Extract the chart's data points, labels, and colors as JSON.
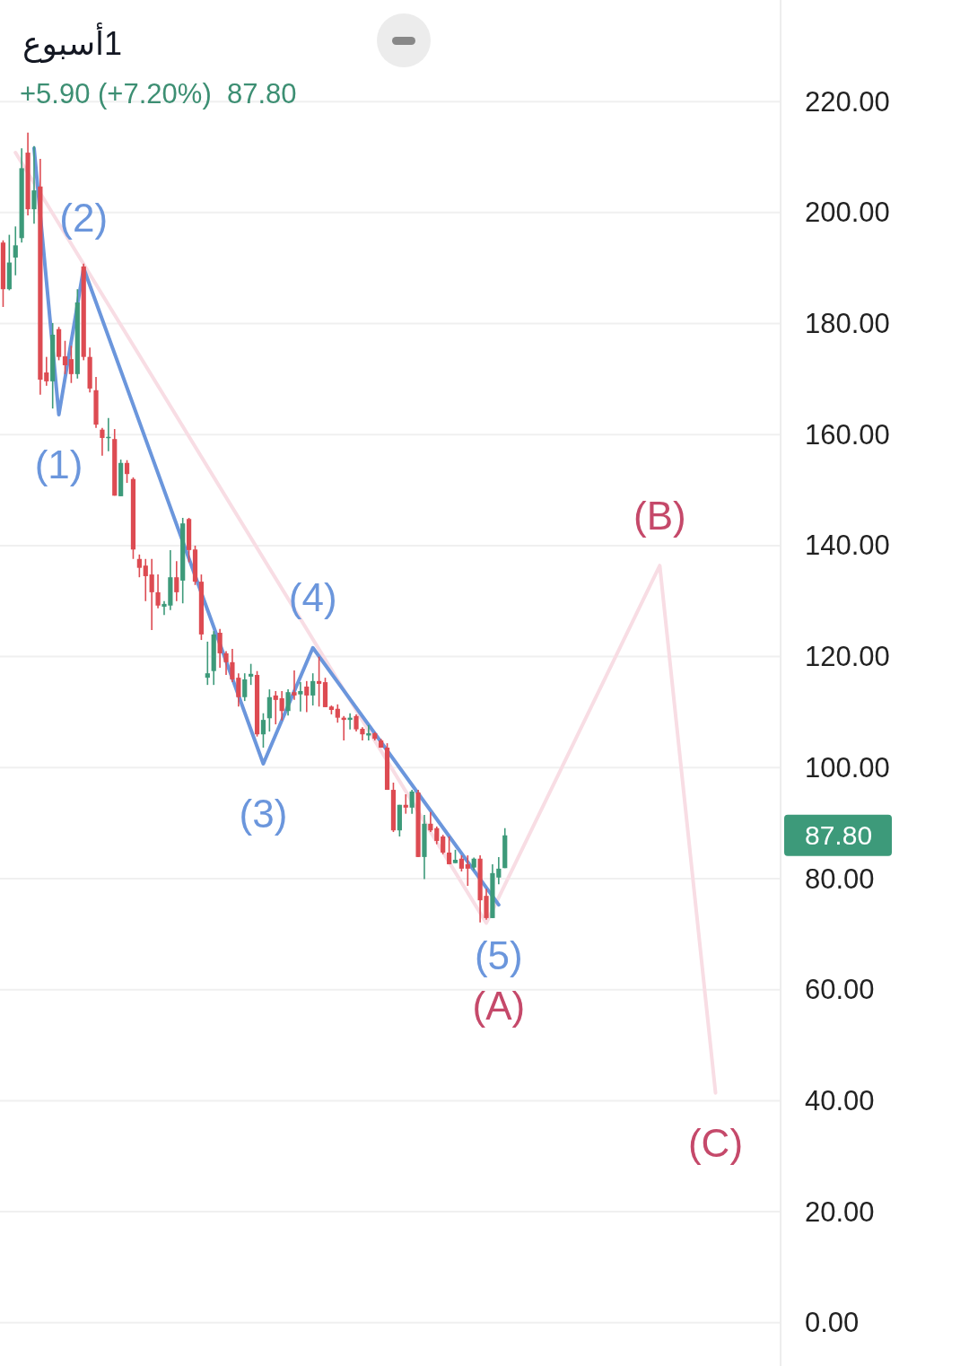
{
  "chart_data": {
    "type": "candlestick",
    "title": "1أسبوع",
    "subtitle": "+5.90 (+7.20%)  87.80",
    "categories": [
      null,
      null,
      null,
      null,
      null,
      null,
      null,
      null,
      null,
      null,
      null,
      null,
      null,
      null,
      null,
      null,
      null,
      null,
      null,
      null,
      null,
      null,
      null,
      null,
      null,
      null,
      null,
      null,
      null,
      null,
      null,
      null,
      null,
      null,
      null,
      null,
      null,
      null,
      null,
      null,
      null,
      null,
      null,
      null,
      null,
      null,
      null,
      null,
      null,
      null,
      null,
      null,
      null,
      null,
      null,
      null,
      null,
      null,
      null,
      null,
      null,
      null,
      null,
      null,
      null,
      null,
      null,
      null,
      null,
      null,
      null,
      null,
      null,
      null,
      null,
      null,
      null,
      null,
      null,
      null,
      null,
      null,
      null,
      null,
      null,
      null,
      null,
      null,
      null,
      null,
      null,
      null,
      null,
      null,
      null,
      null,
      null,
      null,
      null,
      null,
      null,
      null,
      null,
      null,
      null,
      null,
      null,
      null,
      null,
      null,
      null,
      null,
      null,
      null,
      null,
      null,
      null,
      null,
      null,
      null,
      null,
      null,
      null,
      null,
      null,
      null
    ],
    "ohlc": [
      [
        194.6,
        195,
        183,
        186.2
      ],
      [
        186.2,
        196,
        186,
        191
      ],
      [
        191.9,
        197.5,
        188.7,
        194.1
      ],
      [
        195.4,
        211.6,
        194.6,
        208
      ],
      [
        210.8,
        214.4,
        199.5,
        200.6
      ],
      [
        200.6,
        212,
        198,
        204
      ],
      [
        204.7,
        209.7,
        167.2,
        169.9
      ],
      [
        171.2,
        174,
        168.8,
        169.6
      ],
      [
        169.6,
        180.1,
        164.7,
        178
      ],
      [
        179,
        179.4,
        173.4,
        174
      ],
      [
        174.1,
        176.9,
        170.9,
        172.5
      ],
      [
        173.6,
        176,
        169.3,
        170.9
      ],
      [
        170.9,
        186.2,
        170.1,
        183.8
      ],
      [
        190.3,
        190.8,
        173.4,
        174
      ],
      [
        174,
        175.7,
        167.6,
        168.3
      ],
      [
        168,
        170.4,
        161.2,
        161.8
      ],
      [
        160.9,
        161.2,
        156.2,
        159.4
      ],
      [
        159.4,
        163,
        157,
        159.6
      ],
      [
        159.2,
        161,
        149,
        149
      ],
      [
        148.9,
        155.5,
        148.9,
        154.9
      ],
      [
        154.9,
        155.4,
        151.3,
        152.9
      ],
      [
        152,
        152.3,
        137.6,
        139.3
      ],
      [
        137.6,
        138.4,
        134.3,
        136
      ],
      [
        136.4,
        137.6,
        130,
        134.5
      ],
      [
        134.8,
        137.6,
        124.8,
        131.6
      ],
      [
        131.6,
        134.8,
        128.7,
        129.2
      ],
      [
        129,
        130,
        127.5,
        129.5
      ],
      [
        129.2,
        139.2,
        128.4,
        134.3
      ],
      [
        134.3,
        137.2,
        130,
        131.6
      ],
      [
        133.7,
        145,
        129.6,
        144
      ],
      [
        144.8,
        145,
        137,
        139.2
      ],
      [
        139.3,
        140,
        132.9,
        133.5
      ],
      [
        133.5,
        134.8,
        123,
        124
      ],
      [
        116.2,
        122.7,
        114.9,
        117
      ],
      [
        117.4,
        124.6,
        114.9,
        124
      ],
      [
        124.3,
        125,
        118,
        120.6
      ],
      [
        120.6,
        121,
        116.7,
        119
      ],
      [
        119,
        121.4,
        115.4,
        115.9
      ],
      [
        116.2,
        117,
        111,
        112.7
      ],
      [
        112.7,
        117,
        112,
        115.9
      ],
      [
        116.4,
        118.7,
        114.9,
        116.9
      ],
      [
        116.7,
        117.4,
        105.6,
        106
      ],
      [
        106,
        109.8,
        103.6,
        108.6
      ],
      [
        108.9,
        114.1,
        106.5,
        112.7
      ],
      [
        113,
        113.8,
        107.8,
        112.2
      ],
      [
        112.5,
        113.8,
        108.5,
        110.2
      ],
      [
        110.2,
        114.1,
        109.4,
        113.6
      ],
      [
        113.6,
        117.5,
        112.2,
        113
      ],
      [
        113.2,
        115.4,
        110.1,
        113.8
      ],
      [
        114.6,
        115.6,
        110,
        113
      ],
      [
        113,
        117,
        111.2,
        115.6
      ],
      [
        115.6,
        120,
        111,
        115.1
      ],
      [
        115.4,
        116.2,
        110.9,
        110.9
      ],
      [
        111,
        111.2,
        109.6,
        110.4
      ],
      [
        110.6,
        111.4,
        108.1,
        109
      ],
      [
        109,
        109.3,
        104.9,
        108.6
      ],
      [
        108.6,
        109.8,
        106.9,
        109
      ],
      [
        109.3,
        109.6,
        106.5,
        106.9
      ],
      [
        107,
        107.3,
        104.9,
        106
      ],
      [
        105.8,
        107.7,
        104.9,
        106.2
      ],
      [
        106.2,
        106.4,
        104.9,
        105.2
      ],
      [
        104.9,
        105.2,
        103.6,
        103.6
      ],
      [
        103.6,
        104.4,
        96,
        96
      ],
      [
        96,
        97.3,
        88.4,
        88.7
      ],
      [
        88.7,
        93.3,
        87.6,
        93.3
      ],
      [
        93.3,
        95.2,
        91.7,
        92.8
      ],
      [
        92.8,
        96,
        91.7,
        95.7
      ],
      [
        95.5,
        96,
        83.9,
        83.9
      ],
      [
        83.9,
        91.5,
        79.9,
        89.9
      ],
      [
        89.9,
        92,
        88.4,
        88.7
      ],
      [
        89.1,
        89.4,
        86.2,
        86.8
      ],
      [
        87.6,
        87.9,
        84.4,
        84.7
      ],
      [
        84.7,
        87.6,
        82.6,
        82.6
      ],
      [
        82.8,
        85.2,
        82.8,
        83.4
      ],
      [
        83.6,
        84.2,
        81.3,
        81.8
      ],
      [
        82.6,
        84.2,
        78.7,
        81.8
      ],
      [
        82,
        83.8,
        81.5,
        83.6
      ],
      [
        83.6,
        84.2,
        72.1,
        76.1
      ],
      [
        76.9,
        78.2,
        72.6,
        72.9
      ],
      [
        72.9,
        82.6,
        72.9,
        81
      ],
      [
        80.2,
        83.9,
        79,
        81.8
      ],
      [
        81.9,
        89.1,
        81.9,
        87.8
      ],
      null,
      null,
      null,
      null,
      null,
      null,
      null,
      null,
      null,
      null,
      null,
      null,
      null,
      null,
      null,
      null,
      null,
      null,
      null,
      null,
      null,
      null,
      null,
      null,
      null,
      null,
      null,
      null,
      null,
      null,
      null,
      null,
      null,
      null,
      null,
      null,
      null,
      null,
      null,
      null,
      null,
      null,
      null,
      null
    ],
    "colors": [
      "#dd4b52",
      "#3d9a7a",
      "#3d9a7a",
      "#3d9a7a",
      "#dd4b52",
      "#3d9a7a",
      "#dd4b52",
      "#dd4b52",
      "#3d9a7a",
      "#dd4b52",
      "#dd4b52",
      "#dd4b52",
      "#3d9a7a",
      "#dd4b52",
      "#dd4b52",
      "#dd4b52",
      "#dd4b52",
      "#3d9a7a",
      "#dd4b52",
      "#3d9a7a",
      "#dd4b52",
      "#dd4b52",
      "#dd4b52",
      "#dd4b52",
      "#dd4b52",
      "#dd4b52",
      "#3d9a7a",
      "#3d9a7a",
      "#dd4b52",
      "#3d9a7a",
      "#dd4b52",
      "#dd4b52",
      "#dd4b52",
      "#3d9a7a",
      "#3d9a7a",
      "#dd4b52",
      "#dd4b52",
      "#dd4b52",
      "#dd4b52",
      "#3d9a7a",
      "#3d9a7a",
      "#dd4b52",
      "#3d9a7a",
      "#3d9a7a",
      "#dd4b52",
      "#dd4b52",
      "#3d9a7a",
      "#dd4b52",
      "#3d9a7a",
      "#dd4b52",
      "#3d9a7a",
      "#dd4b52",
      "#dd4b52",
      "#dd4b52",
      "#dd4b52",
      "#dd4b52",
      "#3d9a7a",
      "#dd4b52",
      "#dd4b52",
      "#3d9a7a",
      "#dd4b52",
      "#dd4b52",
      "#dd4b52",
      "#dd4b52",
      "#3d9a7a",
      "#dd4b52",
      "#3d9a7a",
      "#dd4b52",
      "#3d9a7a",
      "#dd4b52",
      "#dd4b52",
      "#dd4b52",
      "#dd4b52",
      "#3d9a7a",
      "#dd4b52",
      "#dd4b52",
      "#3d9a7a",
      "#dd4b52",
      "#dd4b52",
      "#3d9a7a",
      "#3d9a7a",
      "#3d9a7a",
      null,
      null,
      null,
      null,
      null,
      null,
      null,
      null,
      null,
      null,
      null,
      null,
      null,
      null,
      null,
      null,
      null,
      null,
      null,
      null,
      null,
      null,
      null,
      null,
      null,
      null,
      null,
      null,
      null,
      null,
      null,
      null,
      null,
      null,
      null,
      null,
      null,
      null,
      null,
      null,
      null,
      null,
      null,
      null
    ],
    "series": [
      {
        "type": "line",
        "color": "#f8dde4",
        "values": [
          null,
          null,
          210.8,
          null,
          null,
          null,
          null,
          null,
          null,
          null,
          null,
          null,
          null,
          null,
          null,
          null,
          null,
          null,
          null,
          null,
          null,
          null,
          null,
          null,
          null,
          null,
          null,
          null,
          null,
          null,
          null,
          null,
          null,
          null,
          null,
          null,
          null,
          null,
          null,
          null,
          null,
          null,
          null,
          null,
          null,
          null,
          null,
          null,
          null,
          null,
          null,
          null,
          null,
          null,
          null,
          null,
          null,
          null,
          null,
          null,
          null,
          null,
          null,
          null,
          null,
          null,
          null,
          null,
          null,
          null,
          null,
          null,
          null,
          null,
          null,
          null,
          null,
          null,
          72,
          null,
          null,
          null,
          null,
          null,
          null,
          null,
          null,
          null,
          null,
          null,
          null,
          null,
          null,
          null,
          null,
          null,
          null,
          null,
          null,
          null,
          null,
          null,
          null,
          null,
          null,
          null,
          136.4,
          null,
          null,
          null,
          null,
          null,
          null,
          null,
          null,
          41.4,
          null,
          null,
          null,
          null,
          null,
          null,
          null,
          null,
          null,
          null
        ]
      },
      {
        "type": "line",
        "color": "#6b96dc",
        "values": [
          null,
          null,
          null,
          null,
          null,
          211.6,
          null,
          null,
          null,
          163.6,
          null,
          null,
          null,
          190,
          null,
          null,
          null,
          null,
          null,
          null,
          null,
          null,
          null,
          null,
          null,
          null,
          null,
          null,
          null,
          null,
          null,
          null,
          null,
          null,
          null,
          null,
          null,
          null,
          null,
          null,
          null,
          null,
          100.7,
          null,
          null,
          null,
          null,
          null,
          null,
          null,
          121.6,
          null,
          null,
          null,
          null,
          null,
          null,
          null,
          null,
          null,
          null,
          null,
          null,
          null,
          null,
          null,
          null,
          null,
          null,
          null,
          null,
          null,
          null,
          null,
          null,
          null,
          null,
          null,
          null,
          null,
          75.3,
          null,
          null,
          null,
          null,
          null,
          null,
          null,
          null,
          null,
          null,
          null,
          null,
          null,
          null,
          null,
          null,
          null,
          null,
          null,
          null,
          null,
          null,
          null,
          null,
          null,
          null,
          null,
          null,
          null,
          null,
          null,
          null,
          null,
          null,
          null,
          null,
          null,
          null,
          null,
          null,
          null,
          null,
          null,
          null,
          null
        ]
      }
    ],
    "ylim": [
      -7.8,
      238.3
    ],
    "yticks": [
      {
        "value": 0,
        "label": "0.00"
      },
      {
        "value": 20,
        "label": "20.00"
      },
      {
        "value": 40,
        "label": "40.00"
      },
      {
        "value": 60,
        "label": "60.00"
      },
      {
        "value": 80,
        "label": "80.00"
      },
      {
        "value": 100,
        "label": "100.00"
      },
      {
        "value": 120,
        "label": "120.00"
      },
      {
        "value": 140,
        "label": "140.00"
      },
      {
        "value": 160,
        "label": "160.00"
      },
      {
        "value": 180,
        "label": "180.00"
      },
      {
        "value": 200,
        "label": "200.00"
      },
      {
        "value": 220,
        "label": "220.00"
      }
    ],
    "grid": "y",
    "tick_labels": "y",
    "annotations": [
      {
        "text": "(1)",
        "y": 163.6
      },
      {
        "text": "(2)",
        "y": 190
      },
      {
        "text": "(3)",
        "y": 100.7
      },
      {
        "text": "(4)",
        "y": 121.6
      },
      {
        "text": "(5)",
        "y": 75.3
      },
      "(A)",
      {
        "text": "(B)",
        "y": 136.4
      },
      {
        "text": "(C)",
        "y": 41.4
      },
      "87.80"
    ]
  }
}
